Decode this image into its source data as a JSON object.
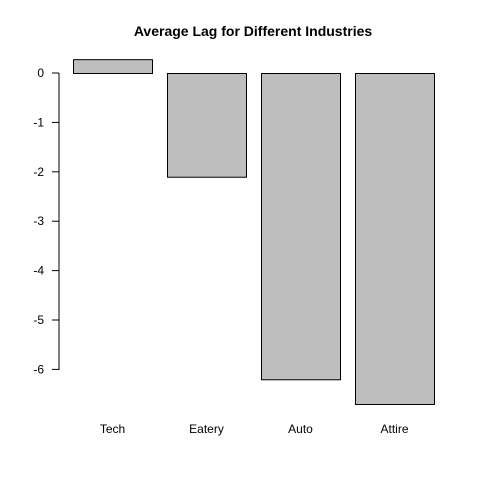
{
  "chart_data": {
    "type": "bar",
    "title": "Average Lag for Different Industries",
    "xlabel": "",
    "ylabel": "",
    "categories": [
      "Tech",
      "Eatery",
      "Auto",
      "Attire"
    ],
    "values": [
      0.28,
      -2.1,
      -6.2,
      -6.7
    ],
    "ylim": [
      -6.7,
      0.28
    ],
    "yticks": [
      0,
      -1,
      -2,
      -3,
      -4,
      -5,
      -6
    ],
    "grid": false,
    "legend": "none",
    "bar_color": "#bebebe",
    "bar_border_color": "#000000"
  }
}
